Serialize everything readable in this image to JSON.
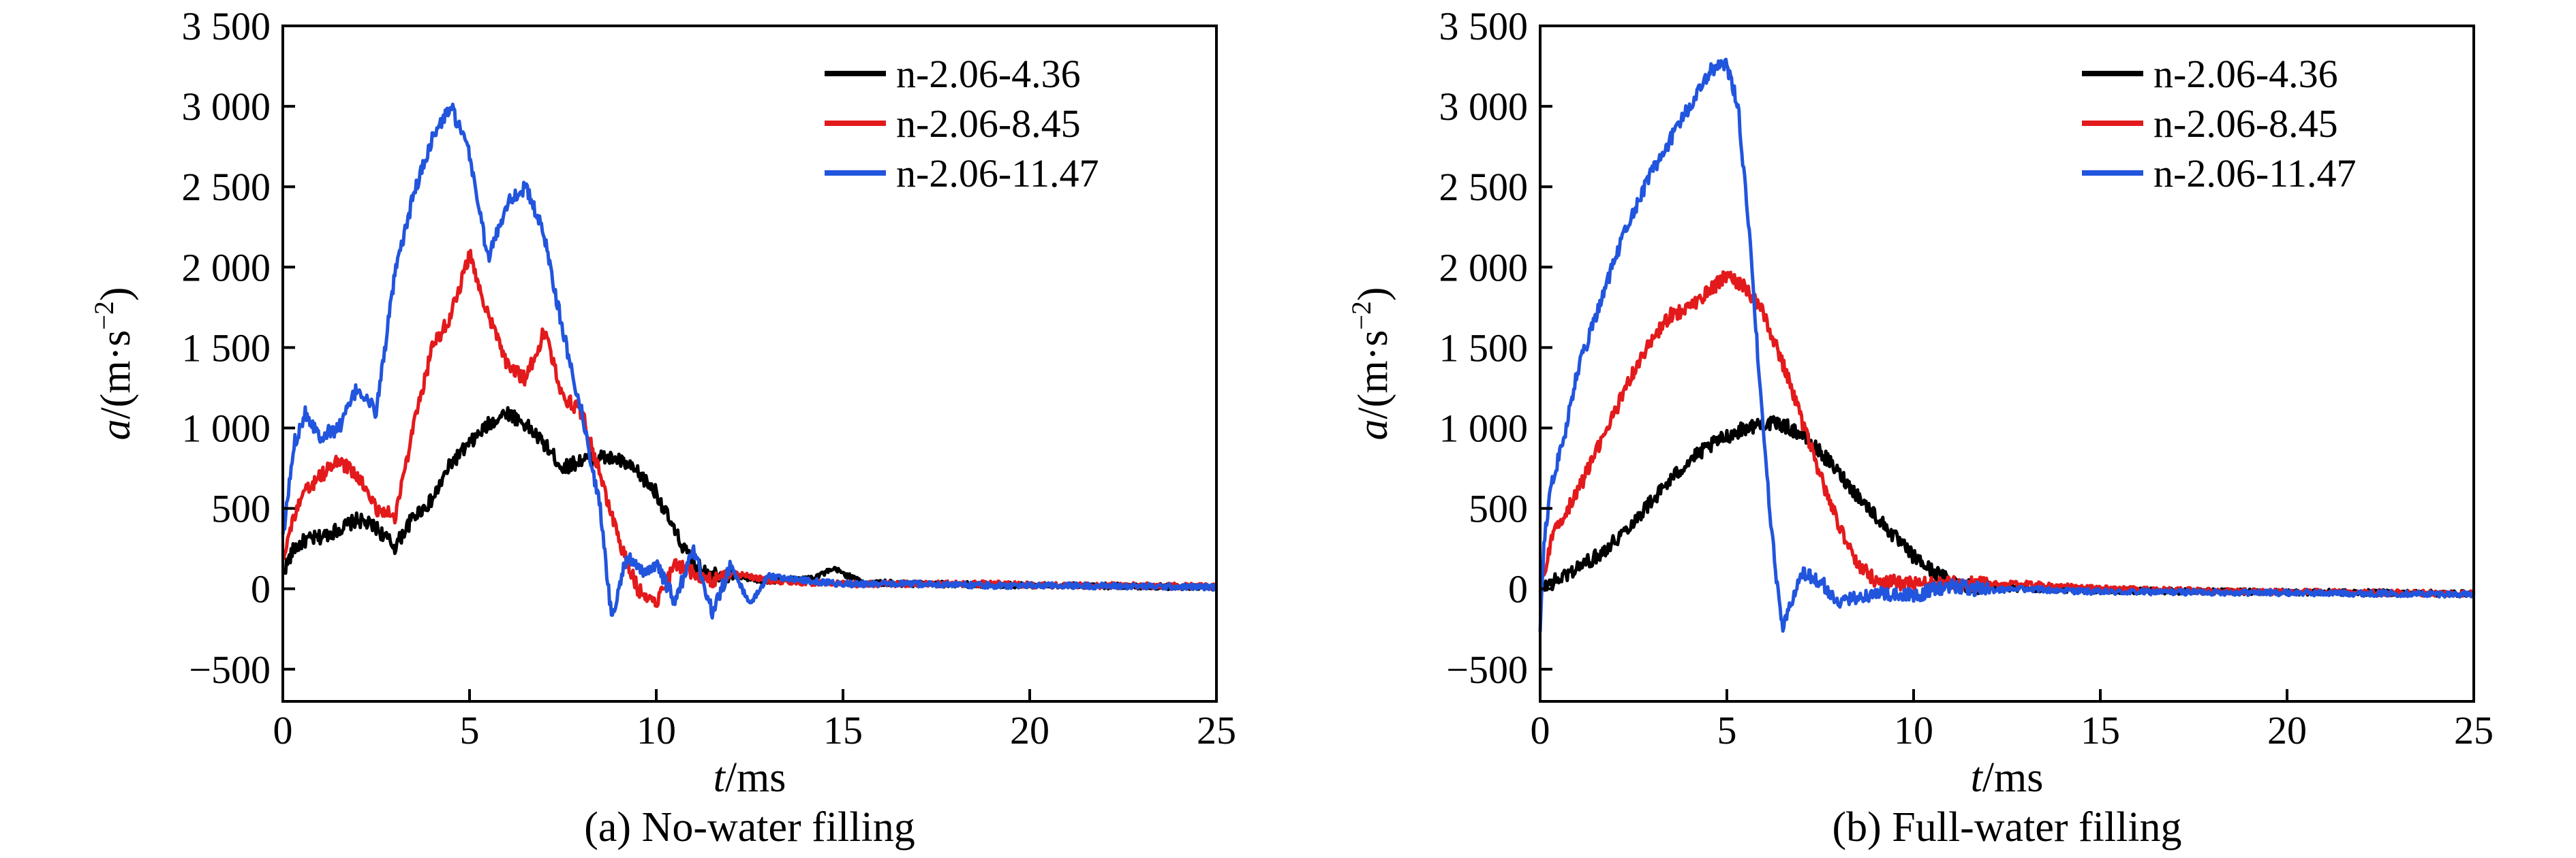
{
  "chart_data": [
    {
      "type": "line",
      "caption": "(a) No-water filling",
      "xlabel_italic": "t",
      "xlabel_unit": "/ms",
      "ylabel_italic": "a",
      "ylabel_unit": "/(m·s",
      "ylabel_exp": "−2",
      "ylabel_close": ")",
      "xlim": [
        0,
        25
      ],
      "ylim": [
        -700,
        3500
      ],
      "xticks": [
        0,
        5,
        10,
        15,
        20,
        25
      ],
      "xtick_labels": [
        "0",
        "5",
        "10",
        "15",
        "20",
        "25"
      ],
      "yticks": [
        -500,
        0,
        500,
        1000,
        1500,
        2000,
        2500,
        3000,
        3500
      ],
      "ytick_labels": [
        "−500",
        "0",
        "500",
        "1 000",
        "1 500",
        "2 000",
        "2 500",
        "3 000",
        "3 500"
      ],
      "grid": false,
      "legend_position": "top-right",
      "series": [
        {
          "name": "n-2.06-4.36",
          "color": "#000000",
          "x": [
            0,
            0.3,
            0.6,
            1.0,
            1.5,
            2.0,
            2.5,
            3.0,
            3.5,
            4.0,
            4.5,
            5.0,
            5.5,
            6.0,
            6.5,
            7.0,
            7.5,
            8.0,
            8.5,
            9.0,
            9.5,
            10.0,
            10.5,
            11.0,
            11.5,
            12.0,
            13.0,
            14.0,
            14.8,
            15.5,
            17.0,
            19.0,
            21.0,
            23.0,
            25.0
          ],
          "y": [
            100,
            250,
            300,
            320,
            370,
            430,
            380,
            260,
            450,
            550,
            780,
            900,
            1020,
            1100,
            1020,
            900,
            750,
            800,
            820,
            800,
            720,
            600,
            350,
            150,
            100,
            80,
            50,
            60,
            120,
            40,
            30,
            25,
            20,
            15,
            10
          ]
        },
        {
          "name": "n-2.06-8.45",
          "color": "#e31a1c",
          "x": [
            0,
            0.3,
            0.6,
            1.0,
            1.5,
            2.0,
            2.5,
            3.0,
            3.5,
            4.0,
            4.5,
            5.0,
            5.5,
            6.0,
            6.5,
            7.0,
            7.5,
            8.0,
            8.5,
            9.0,
            9.5,
            10.0,
            10.5,
            11.0,
            11.5,
            12.0,
            13.0,
            14.0,
            15.0,
            17.0,
            19.0,
            21.0,
            23.0,
            25.0
          ],
          "y": [
            200,
            450,
            600,
            700,
            800,
            700,
            500,
            450,
            1000,
            1500,
            1700,
            2080,
            1700,
            1400,
            1300,
            1600,
            1200,
            1100,
            700,
            300,
            0,
            -80,
            150,
            100,
            50,
            100,
            50,
            40,
            30,
            30,
            30,
            20,
            20,
            15
          ]
        },
        {
          "name": "n-2.06-11.47",
          "color": "#2255dd",
          "x": [
            0,
            0.3,
            0.6,
            1.0,
            1.5,
            2.0,
            2.5,
            3.0,
            3.5,
            4.0,
            4.5,
            5.0,
            5.5,
            6.0,
            6.5,
            7.0,
            7.5,
            8.0,
            8.5,
            8.8,
            9.2,
            9.6,
            10.0,
            10.5,
            11.0,
            11.5,
            12.0,
            12.5,
            13.0,
            14.0,
            15.0,
            17.0,
            19.0,
            21.0,
            23.0,
            25.0
          ],
          "y": [
            300,
            900,
            1100,
            950,
            1000,
            1250,
            1100,
            1950,
            2450,
            2800,
            3000,
            2700,
            2050,
            2400,
            2500,
            2200,
            1600,
            1100,
            500,
            -180,
            200,
            100,
            150,
            -80,
            250,
            -150,
            150,
            -100,
            80,
            50,
            30,
            30,
            20,
            20,
            15,
            10
          ]
        }
      ]
    },
    {
      "type": "line",
      "caption": "(b) Full-water filling",
      "xlabel_italic": "t",
      "xlabel_unit": "/ms",
      "ylabel_italic": "a",
      "ylabel_unit": "/(m·s",
      "ylabel_exp": "−2",
      "ylabel_close": ")",
      "xlim": [
        0,
        25
      ],
      "ylim": [
        -700,
        3500
      ],
      "xticks": [
        0,
        5,
        10,
        15,
        20,
        25
      ],
      "xtick_labels": [
        "0",
        "5",
        "10",
        "15",
        "20",
        "25"
      ],
      "yticks": [
        -500,
        0,
        500,
        1000,
        1500,
        2000,
        2500,
        3000,
        3500
      ],
      "ytick_labels": [
        "−500",
        "0",
        "500",
        "1 000",
        "1 500",
        "2 000",
        "2 500",
        "3 000",
        "3 500"
      ],
      "grid": false,
      "legend_position": "top-right",
      "series": [
        {
          "name": "n-2.06-4.36",
          "color": "#000000",
          "x": [
            0,
            0.5,
            1.0,
            1.5,
            2.0,
            2.5,
            3.0,
            3.5,
            4.0,
            4.5,
            5.0,
            5.5,
            6.0,
            6.5,
            7.0,
            7.5,
            8.0,
            8.5,
            9.0,
            9.5,
            10.0,
            10.5,
            11.0,
            11.5,
            12.0,
            13.0,
            15.0,
            17.0,
            20.0,
            23.0,
            25.0
          ],
          "y": [
            0,
            60,
            130,
            200,
            300,
            420,
            550,
            680,
            800,
            880,
            950,
            1000,
            1030,
            1020,
            960,
            850,
            720,
            580,
            450,
            320,
            200,
            110,
            50,
            20,
            10,
            0,
            -10,
            -15,
            -20,
            -25,
            -30
          ]
        },
        {
          "name": "n-2.06-8.45",
          "color": "#e31a1c",
          "x": [
            0,
            0.3,
            0.6,
            1.0,
            1.5,
            2.0,
            2.5,
            3.0,
            3.5,
            4.0,
            4.5,
            5.0,
            5.3,
            5.5,
            6.0,
            6.5,
            7.0,
            7.5,
            8.0,
            8.5,
            9.0,
            10.0,
            11.0,
            12.0,
            13.0,
            15.0,
            17.0,
            20.0,
            23.0,
            25.0
          ],
          "y": [
            0,
            300,
            450,
            600,
            850,
            1100,
            1350,
            1550,
            1700,
            1750,
            1850,
            1950,
            1900,
            1880,
            1700,
            1400,
            1050,
            700,
            400,
            150,
            50,
            30,
            30,
            30,
            30,
            0,
            -10,
            -20,
            -25,
            -30
          ]
        },
        {
          "name": "n-2.06-11.47",
          "color": "#2255dd",
          "x": [
            0,
            0.1,
            0.3,
            0.6,
            1.0,
            1.5,
            2.0,
            2.5,
            3.0,
            3.5,
            4.0,
            4.5,
            4.8,
            5.0,
            5.3,
            5.6,
            6.0,
            6.3,
            6.5,
            7.0,
            7.5,
            8.0,
            8.5,
            9.0,
            10.0,
            11.0,
            12.0,
            13.0,
            15.0,
            17.0,
            20.0,
            23.0,
            25.0
          ],
          "y": [
            -300,
            300,
            650,
            900,
            1350,
            1700,
            2050,
            2350,
            2600,
            2800,
            3000,
            3200,
            3280,
            3250,
            3000,
            2200,
            900,
            100,
            -230,
            100,
            50,
            -100,
            -50,
            -30,
            -40,
            20,
            -10,
            0,
            -20,
            -20,
            -25,
            -30,
            -35
          ]
        }
      ]
    }
  ]
}
